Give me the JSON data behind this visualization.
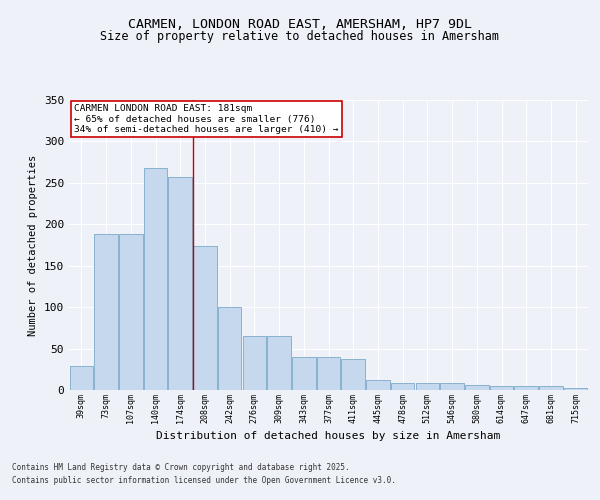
{
  "title1": "CARMEN, LONDON ROAD EAST, AMERSHAM, HP7 9DL",
  "title2": "Size of property relative to detached houses in Amersham",
  "xlabel": "Distribution of detached houses by size in Amersham",
  "ylabel": "Number of detached properties",
  "categories": [
    "39sqm",
    "73sqm",
    "107sqm",
    "140sqm",
    "174sqm",
    "208sqm",
    "242sqm",
    "276sqm",
    "309sqm",
    "343sqm",
    "377sqm",
    "411sqm",
    "445sqm",
    "478sqm",
    "512sqm",
    "546sqm",
    "580sqm",
    "614sqm",
    "647sqm",
    "681sqm",
    "715sqm"
  ],
  "values": [
    29,
    188,
    188,
    268,
    257,
    174,
    100,
    65,
    65,
    40,
    40,
    38,
    12,
    9,
    8,
    8,
    6,
    5,
    5,
    5,
    2
  ],
  "bar_color": "#c5d8ed",
  "bar_edge_color": "#7aaac8",
  "vline_x": 4.5,
  "vline_color": "#cc0000",
  "annotation_text": "CARMEN LONDON ROAD EAST: 181sqm\n← 65% of detached houses are smaller (776)\n34% of semi-detached houses are larger (410) →",
  "annotation_box_color": "#ffffff",
  "annotation_box_edge": "#cc0000",
  "ylim": [
    0,
    350
  ],
  "yticks": [
    0,
    50,
    100,
    150,
    200,
    250,
    300,
    350
  ],
  "footer1": "Contains HM Land Registry data © Crown copyright and database right 2025.",
  "footer2": "Contains public sector information licensed under the Open Government Licence v3.0.",
  "bg_color": "#eef2f8",
  "plot_bg_color": "#eef2f8"
}
